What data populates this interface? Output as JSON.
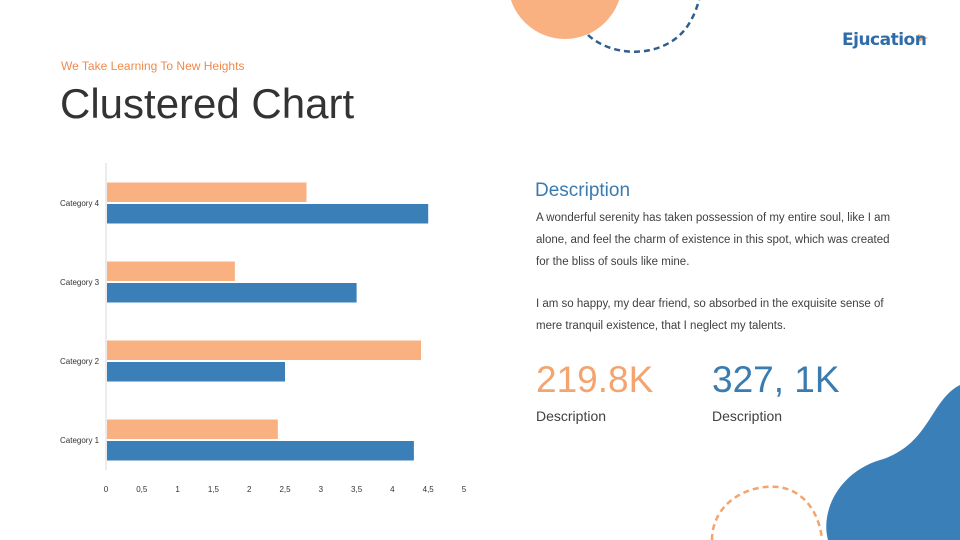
{
  "header": {
    "subtitle": "We Take Learning To New Heights",
    "title": "Clustered Chart",
    "logo_text": "Ejucation"
  },
  "text_panel": {
    "heading": "Description",
    "paragraph1": "A wonderful serenity has taken possession of my entire soul, like I am alone, and feel the charm of existence in this spot, which was created for the bliss of souls like mine.",
    "paragraph2": "I am so happy, my dear friend, so absorbed in the exquisite sense of mere tranquil existence, that I neglect my talents."
  },
  "stats": [
    {
      "value": "219.8K",
      "label": "Description"
    },
    {
      "value": "327, 1K",
      "label": "Description"
    }
  ],
  "colors": {
    "orange": "#F9B182",
    "blue": "#3A7FB8",
    "orange_text": "#F08A4B",
    "blue_text": "#3A7BB0"
  },
  "chart_data": {
    "type": "bar",
    "orientation": "horizontal",
    "categories": [
      "Category 1",
      "Category 2",
      "Category 3",
      "Category 4"
    ],
    "series": [
      {
        "values": [
          4.3,
          2.5,
          3.5,
          4.5
        ],
        "color": "#3A7FB8"
      },
      {
        "values": [
          2.4,
          4.4,
          1.8,
          2.8
        ],
        "color": "#F9B182"
      }
    ],
    "xlim": [
      0,
      5
    ],
    "x_ticks": [
      "0",
      "0,5",
      "1",
      "1,5",
      "2",
      "2,5",
      "3",
      "3,5",
      "4",
      "4,5",
      "5"
    ],
    "grid": false,
    "legend": "none"
  }
}
